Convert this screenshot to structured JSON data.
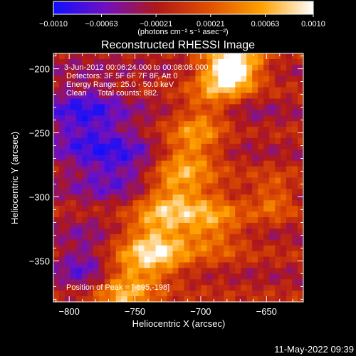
{
  "chart_data": {
    "type": "heatmap",
    "title": "Reconstructed RHESSI Image",
    "xlabel": "Heliocentric X (arcsec)",
    "ylabel": "Heliocentric Y (arcsec)",
    "xlim": [
      -812,
      -622
    ],
    "ylim": [
      -382,
      -188
    ],
    "x_ticks": [
      -800,
      -750,
      -700,
      -650
    ],
    "y_ticks": [
      -200,
      -250,
      -300,
      -350
    ],
    "x_tick_labels": [
      "−800",
      "−750",
      "−700",
      "−650"
    ],
    "y_tick_labels": [
      "−200",
      "−250",
      "−300",
      "−350"
    ],
    "colorbar": {
      "min": -0.001,
      "max": 0.001,
      "tick_values": [
        -0.001,
        -0.00063,
        -0.00021,
        0.00021,
        0.00063,
        0.001
      ],
      "tick_labels": [
        "−0.0010",
        "−0.00063",
        "−0.00021",
        "0.00021",
        "0.00063",
        "0.0010"
      ],
      "unit_label": "(photons cm⁻² s⁻¹ asec⁻²)",
      "colors": [
        "#1010ff",
        "#7010c0",
        "#b01818",
        "#e05000",
        "#ffa000",
        "#ffffff"
      ]
    },
    "annotations": [
      "3-Jun-2012 00:06:24.000 to 00:08:08.000",
      "Detectors: 3F 5F 6F 7F 8F, Att 0",
      "Energy Range: 25.0 - 50.0 keV",
      "Clean     Total counts: 882."
    ],
    "peak_label": "Position of Peak = [-695,-198]",
    "peak": {
      "x": -695,
      "y": -198
    },
    "grid": false
  },
  "footer": {
    "timestamp": "11-May-2022 09:39"
  }
}
